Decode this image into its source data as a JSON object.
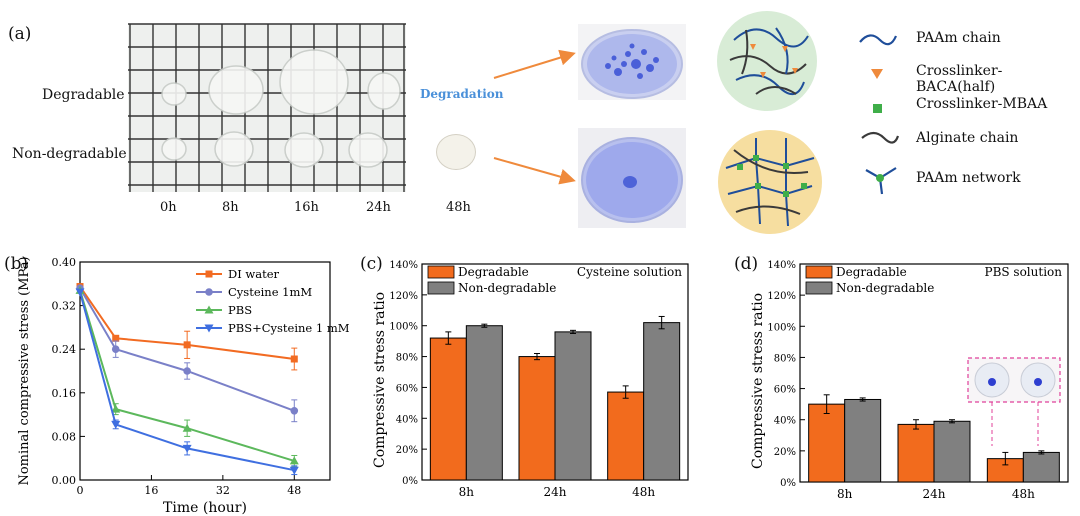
{
  "panel_a": {
    "label": "(a)",
    "row_labels": [
      "Degradable",
      "Non-degradable"
    ],
    "time_labels": [
      "0h",
      "8h",
      "16h",
      "24h",
      "48h"
    ],
    "degradation_label": "Degradation",
    "legend": [
      {
        "icon": "paam-chain-icon",
        "label": "PAAm chain"
      },
      {
        "icon": "crosslinker-baca-icon",
        "label": "Crosslinker-BACA(half)"
      },
      {
        "icon": "crosslinker-mbaa-icon",
        "label": "Crosslinker-MBAA"
      },
      {
        "icon": "alginate-chain-icon",
        "label": "Alginate chain"
      },
      {
        "icon": "paam-network-icon",
        "label": "PAAm network"
      }
    ],
    "colors": {
      "paam": "#1f4e9a",
      "baca": "#ef8a3c",
      "mbaa": "#3fae49",
      "alginate": "#3a3a3a",
      "arrow": "#ef8a3c",
      "degradation_text": "#4a90d9"
    }
  },
  "chart_data": [
    {
      "panel": "(b)",
      "type": "line",
      "xlabel": "Time (hour)",
      "ylabel": "Nominal compressive stress (MPa)",
      "xlim": [
        0,
        56
      ],
      "ylim": [
        0,
        0.4
      ],
      "xticks": [
        "0",
        "16",
        "32",
        "48"
      ],
      "yticks": [
        "0.00",
        "0.08",
        "0.16",
        "0.24",
        "0.32",
        "0.40"
      ],
      "x": [
        0,
        8,
        24,
        48
      ],
      "series": [
        {
          "name": "DI water",
          "values": [
            0.355,
            0.26,
            0.248,
            0.222
          ],
          "err": [
            0,
            0.005,
            0.025,
            0.02
          ],
          "color": "#f26b22",
          "marker": "square"
        },
        {
          "name": "Cysteine 1mM",
          "values": [
            0.352,
            0.24,
            0.2,
            0.127
          ],
          "err": [
            0,
            0.015,
            0.015,
            0.02
          ],
          "color": "#7a80c8",
          "marker": "circle"
        },
        {
          "name": "PBS",
          "values": [
            0.348,
            0.13,
            0.095,
            0.035
          ],
          "err": [
            0,
            0.01,
            0.015,
            0.01
          ],
          "color": "#5cb85c",
          "marker": "triangle-up"
        },
        {
          "name": "PBS+Cysteine 1 mM",
          "values": [
            0.345,
            0.102,
            0.058,
            0.018
          ],
          "err": [
            0,
            0.008,
            0.012,
            0.008
          ],
          "color": "#3f6fe0",
          "marker": "triangle-down"
        }
      ],
      "legend_position": "top-right"
    },
    {
      "panel": "(c)",
      "type": "bar",
      "title": "Cysteine solution",
      "ylabel": "Compressive stress ratio",
      "categories": [
        "8h",
        "24h",
        "48h"
      ],
      "ylim": [
        0,
        140
      ],
      "yticks": [
        "0%",
        "20%",
        "40%",
        "60%",
        "80%",
        "100%",
        "120%",
        "140%"
      ],
      "series": [
        {
          "name": "Degradable",
          "values": [
            92,
            80,
            57
          ],
          "err": [
            4,
            2,
            4
          ],
          "color": "#f26b1d"
        },
        {
          "name": "Non-degradable",
          "values": [
            100,
            96,
            102
          ],
          "err": [
            1,
            1,
            4
          ],
          "color": "#808080"
        }
      ],
      "legend_position": "top-left"
    },
    {
      "panel": "(d)",
      "type": "bar",
      "title": "PBS solution",
      "ylabel": "Compressive stress ratio",
      "categories": [
        "8h",
        "24h",
        "48h"
      ],
      "ylim": [
        0,
        140
      ],
      "yticks": [
        "0%",
        "20%",
        "40%",
        "60%",
        "80%",
        "100%",
        "120%",
        "140%"
      ],
      "series": [
        {
          "name": "Degradable",
          "values": [
            50,
            37,
            15
          ],
          "err": [
            6,
            3,
            4
          ],
          "color": "#f26b1d"
        },
        {
          "name": "Non-degradable",
          "values": [
            53,
            39,
            19
          ],
          "err": [
            1,
            1,
            1
          ],
          "color": "#808080"
        }
      ],
      "legend_position": "top-left"
    }
  ]
}
